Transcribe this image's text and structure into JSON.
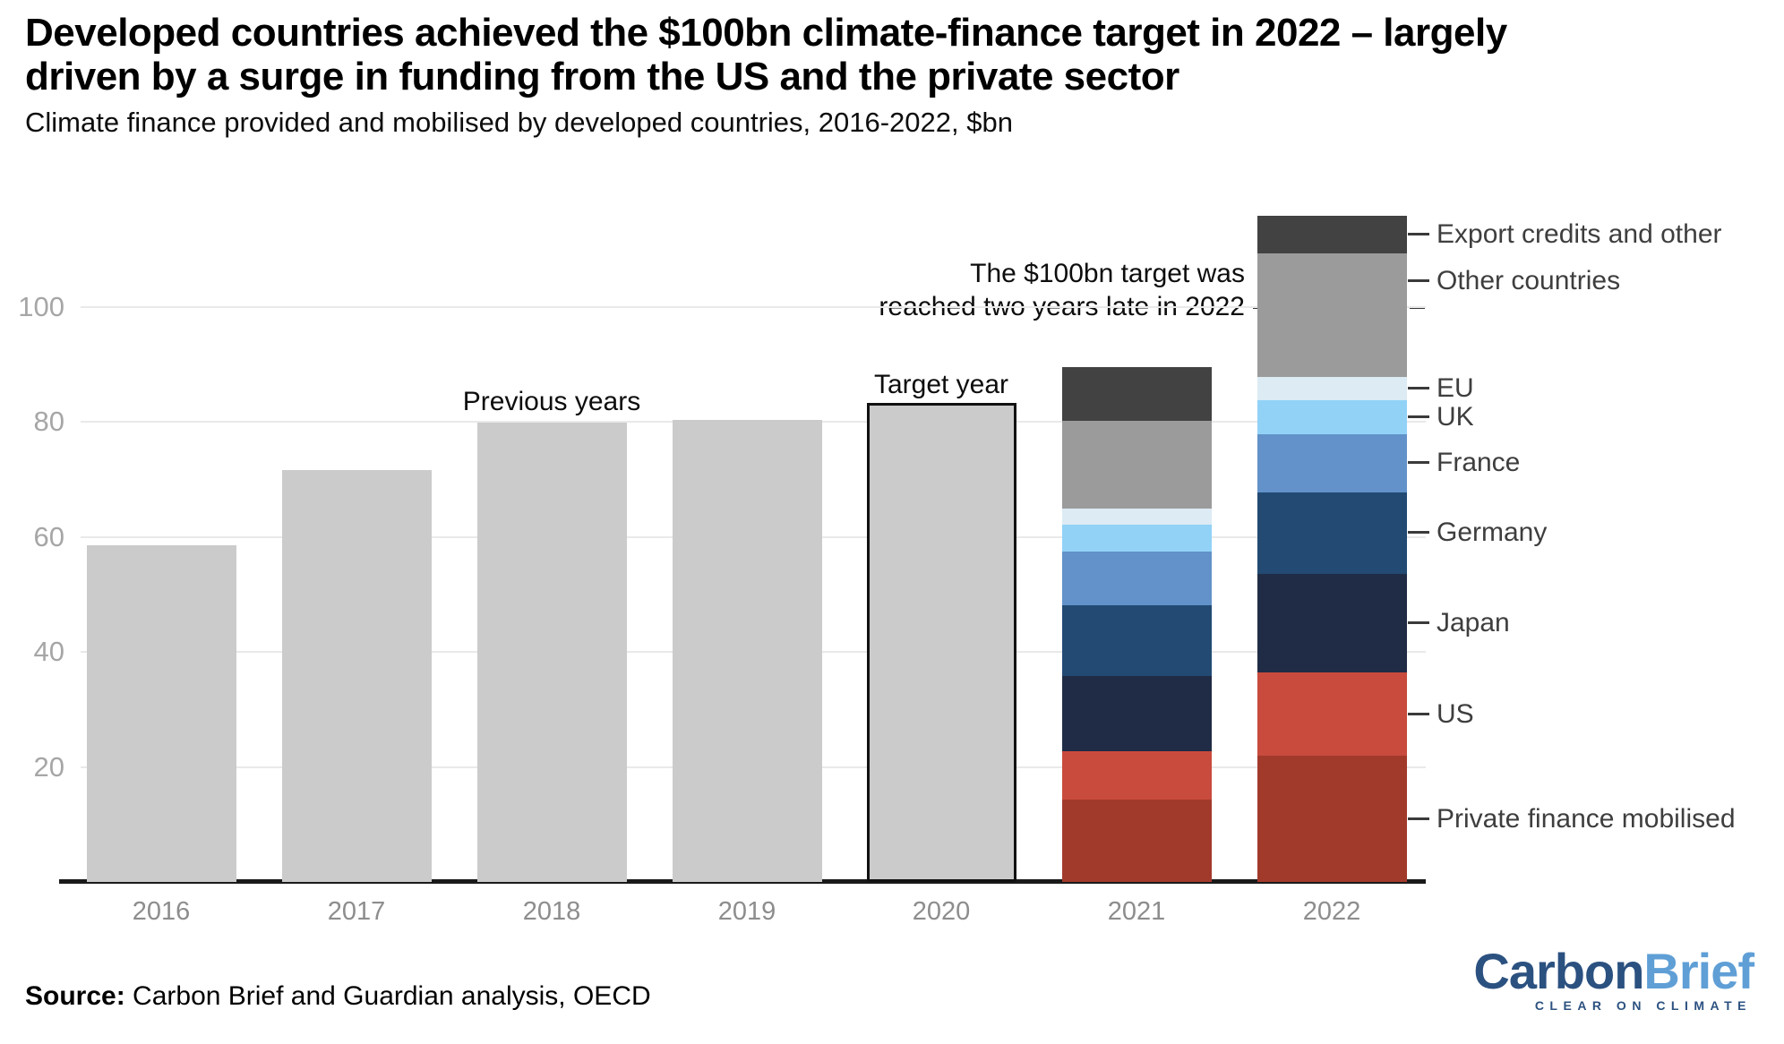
{
  "header": {
    "title_line1": "Developed countries achieved the $100bn climate-finance target in 2022 – largely",
    "title_line2": "driven by a surge in funding from the US and the private sector",
    "subtitle": "Climate finance provided and mobilised by developed countries, 2016-2022, $bn"
  },
  "annotations": {
    "target_note_line1": "The $100bn target was",
    "target_note_line2": "reached two years late in 2022",
    "previous_years_label": "Previous years",
    "target_year_label": "Target year"
  },
  "footer": {
    "source_label": "Source:",
    "source_text": " Carbon Brief and Guardian analysis, OECD",
    "logo_part1": "Carbon",
    "logo_part2": "Brief",
    "logo_tagline": "CLEAR ON CLIMATE"
  },
  "colors": {
    "plain_bar": "#cbcbcb",
    "target_bar_border": "#111111",
    "gridline": "#e9e9e9",
    "axis_line": "#1a1a1a",
    "y_tick_label": "#a6a6a6",
    "x_tick_label": "#8d8d8d",
    "legend_text": "#3e3e3e",
    "dashed_target_line": "#3b3b3b",
    "logo_dark_blue": "#2b5180",
    "logo_light_blue": "#5f9fd6"
  },
  "chart_data": {
    "type": "bar",
    "stacked": true,
    "title": "Developed countries achieved the $100bn climate-finance target in 2022 – largely driven by a surge in funding from the US and the private sector",
    "subtitle": "Climate finance provided and mobilised by developed countries, 2016-2022, $bn",
    "unit": "$bn",
    "x_categories": [
      "2016",
      "2017",
      "2018",
      "2019",
      "2020",
      "2021",
      "2022"
    ],
    "y_ticks": [
      20,
      40,
      60,
      80,
      100
    ],
    "ylim": [
      0,
      118
    ],
    "grid": true,
    "target_line_value": 100,
    "plain_bars": [
      {
        "year": "2016",
        "value": 58.5,
        "outlined": false
      },
      {
        "year": "2017",
        "value": 71.6,
        "outlined": false
      },
      {
        "year": "2018",
        "value": 79.9,
        "outlined": false
      },
      {
        "year": "2019",
        "value": 80.4,
        "outlined": false
      },
      {
        "year": "2020",
        "value": 83.3,
        "outlined": true
      }
    ],
    "stacked_bars": {
      "years": [
        "2021",
        "2022"
      ],
      "totals": [
        89.6,
        115.9
      ],
      "series_bottom_to_top": [
        {
          "name": "Private finance mobilised",
          "color": "#a23a2c",
          "values": [
            14.4,
            21.9
          ]
        },
        {
          "name": "US",
          "color": "#c94b3d",
          "values": [
            8.3,
            14.5
          ]
        },
        {
          "name": "Japan",
          "color": "#202c45",
          "values": [
            13.2,
            17.2
          ]
        },
        {
          "name": "Germany",
          "color": "#224a73",
          "values": [
            12.2,
            14.2
          ]
        },
        {
          "name": "France",
          "color": "#6292c9",
          "values": [
            9.4,
            10.1
          ]
        },
        {
          "name": "UK",
          "color": "#92d2f7",
          "values": [
            4.6,
            5.9
          ]
        },
        {
          "name": "EU",
          "color": "#dcebf4",
          "values": [
            2.9,
            4.0
          ]
        },
        {
          "name": "Other countries",
          "color": "#9b9b9b",
          "values": [
            15.2,
            21.5
          ]
        },
        {
          "name": "Export credits and other",
          "color": "#424242",
          "values": [
            9.4,
            6.6
          ]
        }
      ],
      "legend_position": "right"
    }
  }
}
